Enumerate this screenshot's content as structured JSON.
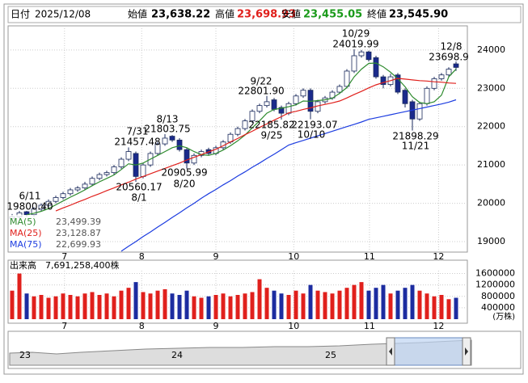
{
  "header": {
    "date_label": "日付",
    "date": "2025/12/08",
    "open_label": "始値",
    "open": "23,638.22",
    "high_label": "高値",
    "high": "23,698.93",
    "low_label": "安値",
    "low": "23,455.05",
    "close_label": "終値",
    "close": "23,545.90"
  },
  "chart_data": [
    {
      "type": "candlestick",
      "xlim": [
        -0.556,
        62.555
      ],
      "ylim": [
        18726,
        24630
      ],
      "yticks": [
        19000,
        20000,
        21000,
        22000,
        23000,
        24000
      ],
      "xticks": [
        {
          "value": 7.2,
          "label": "7"
        },
        {
          "value": 17.8,
          "label": "8"
        },
        {
          "value": 28,
          "label": "9"
        },
        {
          "value": 38.7,
          "label": "10"
        },
        {
          "value": 49.1,
          "label": "11"
        },
        {
          "value": 58.6,
          "label": "12"
        }
      ],
      "grid": true,
      "up_color": "#ffffff",
      "down_color": "#1a2a8c",
      "open": [
        19600,
        19650,
        19780,
        19700,
        19850,
        19950,
        20050,
        20150,
        20250,
        20350,
        20400,
        20500,
        20650,
        20750,
        20800,
        20950,
        21150,
        21300,
        20700,
        21000,
        21300,
        21550,
        21750,
        21650,
        21400,
        21050,
        21250,
        21400,
        21300,
        21450,
        21600,
        21800,
        21950,
        22150,
        22400,
        22550,
        22700,
        22500,
        22350,
        22600,
        22800,
        22950,
        22400,
        22650,
        22750,
        22900,
        23050,
        23450,
        23850,
        23950,
        23800,
        23300,
        23100,
        23350,
        22950,
        22650,
        22200,
        22600,
        23000,
        23250,
        23350,
        23638.22
      ],
      "high": [
        19720,
        19800,
        19800.4,
        19900,
        20000,
        20100,
        20200,
        20300,
        20400,
        20450,
        20560,
        20700,
        20800,
        20850,
        21000,
        21200,
        21457.48,
        21350,
        21050,
        21350,
        21600,
        21803.75,
        21780,
        21700,
        21450,
        21300,
        21400,
        21450,
        21500,
        21650,
        21850,
        22000,
        22200,
        22450,
        22600,
        22801.9,
        22750,
        22550,
        22650,
        22850,
        23000,
        23000,
        22700,
        22800,
        22950,
        23100,
        23500,
        24019.99,
        24000,
        23980,
        23850,
        23350,
        23380,
        23400,
        23000,
        22700,
        22650,
        23050,
        23300,
        23400,
        23550,
        23698.93
      ],
      "low": [
        19550,
        19600,
        19650,
        19650,
        19800,
        19900,
        20000,
        20100,
        20200,
        20300,
        20350,
        20450,
        20600,
        20700,
        20750,
        20900,
        21100,
        20560.17,
        20650,
        20950,
        21250,
        21500,
        21600,
        21350,
        20905.99,
        21000,
        21200,
        21250,
        21250,
        21400,
        21550,
        21750,
        21900,
        22100,
        22350,
        22500,
        22400,
        22185.82,
        22300,
        22550,
        22750,
        22193.07,
        22350,
        22600,
        22700,
        22850,
        23000,
        23400,
        23800,
        23700,
        23250,
        23000,
        23050,
        22850,
        22500,
        21898.29,
        22150,
        22550,
        22950,
        23200,
        23300,
        23455.05
      ],
      "close": [
        19650,
        19750,
        19700,
        19850,
        19950,
        20050,
        20150,
        20250,
        20350,
        20400,
        20500,
        20650,
        20750,
        20800,
        20950,
        21150,
        21350,
        20700,
        21000,
        21300,
        21550,
        21700,
        21650,
        21400,
        21050,
        21250,
        21350,
        21300,
        21450,
        21600,
        21800,
        21950,
        22150,
        22400,
        22550,
        22650,
        22450,
        22350,
        22600,
        22800,
        22950,
        22400,
        22650,
        22750,
        22900,
        23050,
        23450,
        23850,
        23950,
        23750,
        23300,
        23100,
        23300,
        22900,
        22600,
        22200,
        22600,
        23000,
        23250,
        23350,
        23500,
        23545.9
      ],
      "series": [
        {
          "name": "MA(5)",
          "color": "#2e8b2e",
          "value_label": "23,499.39",
          "values": [
            null,
            null,
            19700,
            19740,
            19790,
            19860,
            19960,
            20060,
            20160,
            20250,
            20350,
            20460,
            20560,
            20650,
            20740,
            20880,
            21030,
            21000,
            21050,
            21150,
            21250,
            21350,
            21450,
            21500,
            21450,
            21350,
            21270,
            21250,
            21300,
            21390,
            21500,
            21630,
            21780,
            21970,
            22150,
            22350,
            22450,
            22480,
            22520,
            22570,
            22670,
            22660,
            22680,
            22700,
            22740,
            22870,
            23020,
            23300,
            23500,
            23650,
            23660,
            23560,
            23420,
            23250,
            23040,
            22780,
            22630,
            22600,
            22650,
            22820,
            23300,
            23499.39
          ]
        },
        {
          "name": "MA(25)",
          "color": "#e0201c",
          "value_label": "23,128.87",
          "values": [
            null,
            null,
            null,
            null,
            null,
            null,
            19800,
            19880,
            19950,
            20030,
            20100,
            20180,
            20250,
            20330,
            20400,
            20480,
            20550,
            20630,
            20700,
            20770,
            20840,
            20910,
            20980,
            21050,
            21130,
            21200,
            21270,
            21340,
            21410,
            21500,
            21600,
            21690,
            21790,
            21880,
            21980,
            22070,
            22170,
            22260,
            22360,
            22400,
            22450,
            22490,
            22540,
            22580,
            22620,
            22670,
            22750,
            22840,
            22920,
            23010,
            23090,
            23150,
            23200,
            23260,
            23240,
            23220,
            23200,
            23190,
            23170,
            23160,
            23140,
            23128.87
          ]
        },
        {
          "name": "MA(75)",
          "color": "#1c3ce0",
          "value_label": "22,699.93",
          "values": [
            null,
            null,
            null,
            null,
            null,
            null,
            null,
            null,
            null,
            null,
            null,
            null,
            null,
            null,
            null,
            18750,
            18880,
            19000,
            19130,
            19250,
            19380,
            19500,
            19630,
            19750,
            19880,
            20000,
            20130,
            20250,
            20360,
            20480,
            20590,
            20710,
            20820,
            20940,
            21050,
            21170,
            21280,
            21400,
            21520,
            21580,
            21640,
            21700,
            21760,
            21820,
            21880,
            21940,
            22000,
            22060,
            22120,
            22190,
            22230,
            22270,
            22310,
            22350,
            22390,
            22430,
            22470,
            22510,
            22550,
            22590,
            22640,
            22699.93
          ]
        }
      ],
      "annotations": [
        {
          "date": "6/11",
          "value": "19800.40"
        },
        {
          "date": "7/31",
          "value": "21457.48"
        },
        {
          "date": "8/13",
          "value": "21803.75"
        },
        {
          "date": "9/22",
          "value": "22801.90"
        },
        {
          "date": "10/29",
          "value": "24019.99"
        },
        {
          "date": "12/8",
          "value": "23698.9"
        },
        {
          "date": "8/1",
          "value": "20560.17"
        },
        {
          "date": "8/20",
          "value": "20905.99"
        },
        {
          "date": "9/25",
          "value": "22185.82"
        },
        {
          "date": "10/10",
          "value": "22193.07"
        },
        {
          "date": "11/21",
          "value": "21898.29"
        }
      ]
    },
    {
      "type": "bar",
      "title": "出来高　7,691,258,400株",
      "unit": "(万株)",
      "xlim": [
        -0.556,
        62.555
      ],
      "ylim": [
        0,
        1700000
      ],
      "yticks": [
        400000,
        800000,
        1200000,
        1600000
      ],
      "xticks": [
        {
          "value": 7.2,
          "label": "7"
        },
        {
          "value": 17.8,
          "label": "8"
        },
        {
          "value": 28,
          "label": "9"
        },
        {
          "value": 38.7,
          "label": "10"
        },
        {
          "value": 49.1,
          "label": "11"
        },
        {
          "value": 58.6,
          "label": "12"
        }
      ],
      "grid": true,
      "up_color": "#e0201c",
      "down_color": "#1c2ca0",
      "values": [
        1000000,
        1600000,
        900000,
        800000,
        850000,
        750000,
        800000,
        900000,
        850000,
        800000,
        900000,
        950000,
        850000,
        900000,
        800000,
        1000000,
        1100000,
        1300000,
        950000,
        900000,
        1000000,
        1050000,
        900000,
        850000,
        1000000,
        800000,
        750000,
        800000,
        850000,
        900000,
        800000,
        850000,
        900000,
        950000,
        1400000,
        1100000,
        1000000,
        900000,
        850000,
        1000000,
        900000,
        1200000,
        1000000,
        950000,
        900000,
        1000000,
        1100000,
        1200000,
        1300000,
        1000000,
        1100000,
        1200000,
        900000,
        1000000,
        1100000,
        1200000,
        1000000,
        900000,
        800000,
        850000,
        700000,
        750000
      ]
    }
  ],
  "navigator": {
    "labels": [
      "23",
      "24",
      "25"
    ]
  }
}
